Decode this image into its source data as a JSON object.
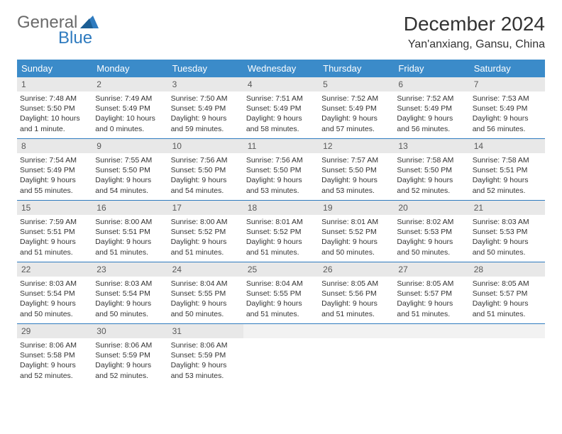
{
  "logo": {
    "general": "General",
    "blue": "Blue"
  },
  "title": "December 2024",
  "location": "Yan'anxiang, Gansu, China",
  "colors": {
    "header_bg": "#3b8bc9",
    "header_text": "#ffffff",
    "daynum_bg": "#e8e8e8",
    "daynum_text": "#595959",
    "divider": "#2f7bbf",
    "logo_gray": "#6a6a6a",
    "logo_blue": "#2f7bbf"
  },
  "weekdays": [
    "Sunday",
    "Monday",
    "Tuesday",
    "Wednesday",
    "Thursday",
    "Friday",
    "Saturday"
  ],
  "weeks": [
    [
      {
        "num": "1",
        "sunrise": "Sunrise: 7:48 AM",
        "sunset": "Sunset: 5:50 PM",
        "daylight": "Daylight: 10 hours and 1 minute."
      },
      {
        "num": "2",
        "sunrise": "Sunrise: 7:49 AM",
        "sunset": "Sunset: 5:49 PM",
        "daylight": "Daylight: 10 hours and 0 minutes."
      },
      {
        "num": "3",
        "sunrise": "Sunrise: 7:50 AM",
        "sunset": "Sunset: 5:49 PM",
        "daylight": "Daylight: 9 hours and 59 minutes."
      },
      {
        "num": "4",
        "sunrise": "Sunrise: 7:51 AM",
        "sunset": "Sunset: 5:49 PM",
        "daylight": "Daylight: 9 hours and 58 minutes."
      },
      {
        "num": "5",
        "sunrise": "Sunrise: 7:52 AM",
        "sunset": "Sunset: 5:49 PM",
        "daylight": "Daylight: 9 hours and 57 minutes."
      },
      {
        "num": "6",
        "sunrise": "Sunrise: 7:52 AM",
        "sunset": "Sunset: 5:49 PM",
        "daylight": "Daylight: 9 hours and 56 minutes."
      },
      {
        "num": "7",
        "sunrise": "Sunrise: 7:53 AM",
        "sunset": "Sunset: 5:49 PM",
        "daylight": "Daylight: 9 hours and 56 minutes."
      }
    ],
    [
      {
        "num": "8",
        "sunrise": "Sunrise: 7:54 AM",
        "sunset": "Sunset: 5:49 PM",
        "daylight": "Daylight: 9 hours and 55 minutes."
      },
      {
        "num": "9",
        "sunrise": "Sunrise: 7:55 AM",
        "sunset": "Sunset: 5:50 PM",
        "daylight": "Daylight: 9 hours and 54 minutes."
      },
      {
        "num": "10",
        "sunrise": "Sunrise: 7:56 AM",
        "sunset": "Sunset: 5:50 PM",
        "daylight": "Daylight: 9 hours and 54 minutes."
      },
      {
        "num": "11",
        "sunrise": "Sunrise: 7:56 AM",
        "sunset": "Sunset: 5:50 PM",
        "daylight": "Daylight: 9 hours and 53 minutes."
      },
      {
        "num": "12",
        "sunrise": "Sunrise: 7:57 AM",
        "sunset": "Sunset: 5:50 PM",
        "daylight": "Daylight: 9 hours and 53 minutes."
      },
      {
        "num": "13",
        "sunrise": "Sunrise: 7:58 AM",
        "sunset": "Sunset: 5:50 PM",
        "daylight": "Daylight: 9 hours and 52 minutes."
      },
      {
        "num": "14",
        "sunrise": "Sunrise: 7:58 AM",
        "sunset": "Sunset: 5:51 PM",
        "daylight": "Daylight: 9 hours and 52 minutes."
      }
    ],
    [
      {
        "num": "15",
        "sunrise": "Sunrise: 7:59 AM",
        "sunset": "Sunset: 5:51 PM",
        "daylight": "Daylight: 9 hours and 51 minutes."
      },
      {
        "num": "16",
        "sunrise": "Sunrise: 8:00 AM",
        "sunset": "Sunset: 5:51 PM",
        "daylight": "Daylight: 9 hours and 51 minutes."
      },
      {
        "num": "17",
        "sunrise": "Sunrise: 8:00 AM",
        "sunset": "Sunset: 5:52 PM",
        "daylight": "Daylight: 9 hours and 51 minutes."
      },
      {
        "num": "18",
        "sunrise": "Sunrise: 8:01 AM",
        "sunset": "Sunset: 5:52 PM",
        "daylight": "Daylight: 9 hours and 51 minutes."
      },
      {
        "num": "19",
        "sunrise": "Sunrise: 8:01 AM",
        "sunset": "Sunset: 5:52 PM",
        "daylight": "Daylight: 9 hours and 50 minutes."
      },
      {
        "num": "20",
        "sunrise": "Sunrise: 8:02 AM",
        "sunset": "Sunset: 5:53 PM",
        "daylight": "Daylight: 9 hours and 50 minutes."
      },
      {
        "num": "21",
        "sunrise": "Sunrise: 8:03 AM",
        "sunset": "Sunset: 5:53 PM",
        "daylight": "Daylight: 9 hours and 50 minutes."
      }
    ],
    [
      {
        "num": "22",
        "sunrise": "Sunrise: 8:03 AM",
        "sunset": "Sunset: 5:54 PM",
        "daylight": "Daylight: 9 hours and 50 minutes."
      },
      {
        "num": "23",
        "sunrise": "Sunrise: 8:03 AM",
        "sunset": "Sunset: 5:54 PM",
        "daylight": "Daylight: 9 hours and 50 minutes."
      },
      {
        "num": "24",
        "sunrise": "Sunrise: 8:04 AM",
        "sunset": "Sunset: 5:55 PM",
        "daylight": "Daylight: 9 hours and 50 minutes."
      },
      {
        "num": "25",
        "sunrise": "Sunrise: 8:04 AM",
        "sunset": "Sunset: 5:55 PM",
        "daylight": "Daylight: 9 hours and 51 minutes."
      },
      {
        "num": "26",
        "sunrise": "Sunrise: 8:05 AM",
        "sunset": "Sunset: 5:56 PM",
        "daylight": "Daylight: 9 hours and 51 minutes."
      },
      {
        "num": "27",
        "sunrise": "Sunrise: 8:05 AM",
        "sunset": "Sunset: 5:57 PM",
        "daylight": "Daylight: 9 hours and 51 minutes."
      },
      {
        "num": "28",
        "sunrise": "Sunrise: 8:05 AM",
        "sunset": "Sunset: 5:57 PM",
        "daylight": "Daylight: 9 hours and 51 minutes."
      }
    ],
    [
      {
        "num": "29",
        "sunrise": "Sunrise: 8:06 AM",
        "sunset": "Sunset: 5:58 PM",
        "daylight": "Daylight: 9 hours and 52 minutes."
      },
      {
        "num": "30",
        "sunrise": "Sunrise: 8:06 AM",
        "sunset": "Sunset: 5:59 PM",
        "daylight": "Daylight: 9 hours and 52 minutes."
      },
      {
        "num": "31",
        "sunrise": "Sunrise: 8:06 AM",
        "sunset": "Sunset: 5:59 PM",
        "daylight": "Daylight: 9 hours and 53 minutes."
      },
      {
        "empty": true
      },
      {
        "empty": true
      },
      {
        "empty": true
      },
      {
        "empty": true
      }
    ]
  ]
}
